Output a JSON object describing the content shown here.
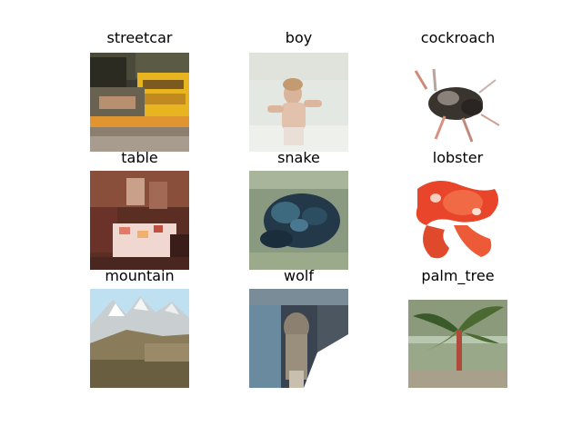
{
  "figure": {
    "panels": [
      {
        "label": "streetcar",
        "image": "blurred yellow streetcar"
      },
      {
        "label": "boy",
        "image": "boy lying on white sheet"
      },
      {
        "label": "cockroach",
        "image": "dark cockroach on white"
      },
      {
        "label": "table",
        "image": "table set with food"
      },
      {
        "label": "snake",
        "image": "dark coiled snake on grey-green"
      },
      {
        "label": "lobster",
        "image": "red lobster on white"
      },
      {
        "label": "mountain",
        "image": "snowy mountain and hillside"
      },
      {
        "label": "wolf",
        "image": "grey wolf in snow"
      },
      {
        "label": "palm_tree",
        "image": "small palm tree"
      }
    ]
  }
}
